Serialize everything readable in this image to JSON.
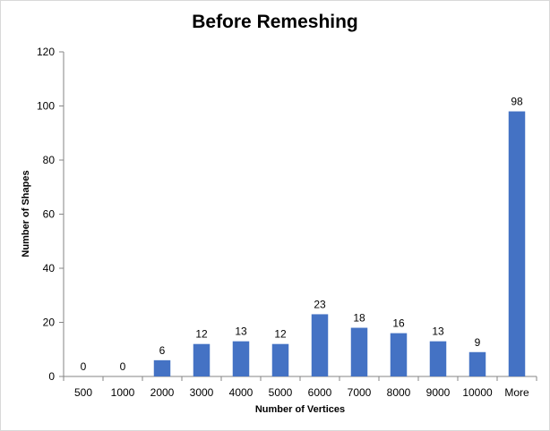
{
  "chart_data": {
    "type": "bar",
    "title": "Before Remeshing",
    "xlabel": "Number of Vertices",
    "ylabel": "Number of Shapes",
    "categories": [
      "500",
      "1000",
      "2000",
      "3000",
      "4000",
      "5000",
      "6000",
      "7000",
      "8000",
      "9000",
      "10000",
      "More"
    ],
    "values": [
      0,
      0,
      6,
      12,
      13,
      12,
      23,
      18,
      16,
      13,
      9,
      98
    ],
    "ylim": [
      0,
      120
    ],
    "yticks": [
      0,
      20,
      40,
      60,
      80,
      100,
      120
    ],
    "grid": false,
    "legend": "none",
    "data_labels": true,
    "bar_color": "#4472c4"
  }
}
